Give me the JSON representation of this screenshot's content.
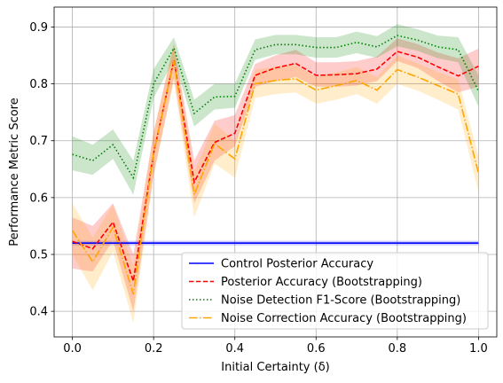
{
  "chart_data": {
    "type": "line",
    "title": "",
    "xlabel": "Initial Certainty (δ)",
    "ylabel": "Performance Metric Score",
    "xlim": [
      -0.045,
      1.045
    ],
    "ylim": [
      0.355,
      0.935
    ],
    "xticks": [
      0.0,
      0.2,
      0.4,
      0.6,
      0.8,
      1.0
    ],
    "xtick_labels": [
      "0.0",
      "0.2",
      "0.4",
      "0.6",
      "0.8",
      "1.0"
    ],
    "yticks": [
      0.4,
      0.5,
      0.6,
      0.7,
      0.8,
      0.9
    ],
    "ytick_labels": [
      "0.4",
      "0.5",
      "0.6",
      "0.7",
      "0.8",
      "0.9"
    ],
    "grid": true,
    "legend_position": "lower-right",
    "x": [
      0.0,
      0.05,
      0.1,
      0.15,
      0.2,
      0.25,
      0.3,
      0.35,
      0.4,
      0.45,
      0.5,
      0.55,
      0.6,
      0.65,
      0.7,
      0.75,
      0.8,
      0.85,
      0.9,
      0.95,
      1.0
    ],
    "series": [
      {
        "name": "Control Posterior Accuracy",
        "color": "#0000ff",
        "dash": "solid",
        "values": [
          0.52,
          0.52,
          0.52,
          0.52,
          0.52,
          0.52,
          0.52,
          0.52,
          0.52,
          0.52,
          0.52,
          0.52,
          0.52,
          0.52,
          0.52,
          0.52,
          0.52,
          0.52,
          0.52,
          0.52,
          0.52
        ],
        "lower": [
          0.516,
          0.516,
          0.516,
          0.516,
          0.516,
          0.516,
          0.516,
          0.516,
          0.516,
          0.516,
          0.516,
          0.516,
          0.516,
          0.516,
          0.516,
          0.516,
          0.516,
          0.516,
          0.516,
          0.516,
          0.516
        ],
        "upper": [
          0.524,
          0.524,
          0.524,
          0.524,
          0.524,
          0.524,
          0.524,
          0.524,
          0.524,
          0.524,
          0.524,
          0.524,
          0.524,
          0.524,
          0.524,
          0.524,
          0.524,
          0.524,
          0.524,
          0.524,
          0.524
        ]
      },
      {
        "name": "Posterior Accuracy (Bootstrapping)",
        "color": "#ff0000",
        "dash": "dashed",
        "values": [
          0.523,
          0.51,
          0.557,
          0.453,
          0.678,
          0.842,
          0.627,
          0.697,
          0.713,
          0.815,
          0.828,
          0.836,
          0.815,
          0.816,
          0.818,
          0.826,
          0.857,
          0.847,
          0.83,
          0.814,
          0.831
        ],
        "lower": [
          0.475,
          0.47,
          0.525,
          0.4,
          0.64,
          0.81,
          0.59,
          0.665,
          0.69,
          0.795,
          0.805,
          0.812,
          0.795,
          0.795,
          0.797,
          0.805,
          0.84,
          0.828,
          0.805,
          0.785,
          0.795
        ],
        "upper": [
          0.565,
          0.55,
          0.59,
          0.5,
          0.715,
          0.87,
          0.665,
          0.735,
          0.745,
          0.835,
          0.85,
          0.86,
          0.838,
          0.838,
          0.84,
          0.848,
          0.88,
          0.87,
          0.855,
          0.845,
          0.862
        ]
      },
      {
        "name": "Noise Detection F1-Score (Bootstrapping)",
        "color": "#008000",
        "dash": "dotted",
        "values": [
          0.676,
          0.665,
          0.693,
          0.635,
          0.8,
          0.863,
          0.748,
          0.777,
          0.778,
          0.86,
          0.869,
          0.869,
          0.864,
          0.864,
          0.873,
          0.865,
          0.885,
          0.877,
          0.865,
          0.86,
          0.787
        ],
        "lower": [
          0.648,
          0.64,
          0.668,
          0.605,
          0.775,
          0.842,
          0.725,
          0.755,
          0.758,
          0.842,
          0.852,
          0.852,
          0.846,
          0.846,
          0.854,
          0.846,
          0.866,
          0.858,
          0.845,
          0.838,
          0.76
        ],
        "upper": [
          0.708,
          0.693,
          0.72,
          0.665,
          0.826,
          0.882,
          0.772,
          0.8,
          0.8,
          0.878,
          0.886,
          0.886,
          0.882,
          0.882,
          0.892,
          0.884,
          0.905,
          0.896,
          0.885,
          0.882,
          0.815
        ]
      },
      {
        "name": "Noise Correction Accuracy (Bootstrapping)",
        "color": "#ffa500",
        "dash": "dashdot",
        "values": [
          0.542,
          0.487,
          0.548,
          0.43,
          0.678,
          0.84,
          0.605,
          0.695,
          0.668,
          0.8,
          0.806,
          0.809,
          0.789,
          0.797,
          0.806,
          0.789,
          0.825,
          0.812,
          0.797,
          0.782,
          0.643
        ],
        "lower": [
          0.5,
          0.437,
          0.505,
          0.38,
          0.64,
          0.805,
          0.565,
          0.66,
          0.635,
          0.775,
          0.782,
          0.785,
          0.765,
          0.772,
          0.782,
          0.765,
          0.8,
          0.788,
          0.772,
          0.755,
          0.61
        ],
        "upper": [
          0.59,
          0.53,
          0.588,
          0.48,
          0.715,
          0.872,
          0.645,
          0.73,
          0.7,
          0.825,
          0.83,
          0.833,
          0.812,
          0.82,
          0.83,
          0.812,
          0.85,
          0.836,
          0.821,
          0.808,
          0.672
        ]
      }
    ]
  }
}
